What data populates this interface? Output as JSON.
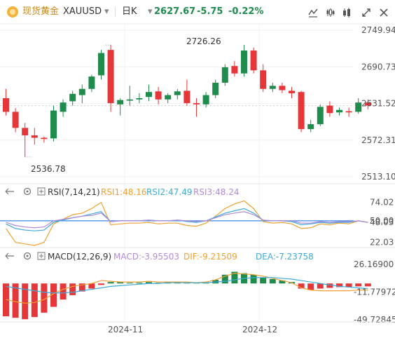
{
  "header": {
    "symbol_name": "现货黄金",
    "symbol_code": "XAUUSD",
    "interval": "日K",
    "price": "2627.67",
    "change": "-5.75",
    "change_pct": "-0.22%",
    "up_color": "#e5363a",
    "down_color": "#1f8b4c",
    "icons": [
      "drawing-tool-icon",
      "chart-type-icon",
      "indicator-icon",
      "fullscreen-icon",
      "close-icon"
    ]
  },
  "price_chart": {
    "y_ticks": [
      "2749.94",
      "2690.73",
      "2631.52",
      "2572.31",
      "2513.10"
    ],
    "y_tick_values": [
      2749.94,
      2690.73,
      2631.52,
      2572.31,
      2513.1
    ],
    "high_label": "2726.26",
    "low_label": "2536.78",
    "candles": [
      [
        2640,
        2655,
        2612,
        2618
      ],
      [
        2618,
        2624,
        2585,
        2592
      ],
      [
        2592,
        2600,
        2545,
        2580
      ],
      [
        2580,
        2592,
        2565,
        2576
      ],
      [
        2576,
        2578,
        2568,
        2574
      ],
      [
        2575,
        2628,
        2570,
        2620
      ],
      [
        2618,
        2638,
        2610,
        2633
      ],
      [
        2635,
        2652,
        2628,
        2647
      ],
      [
        2645,
        2662,
        2632,
        2655
      ],
      [
        2655,
        2678,
        2650,
        2675
      ],
      [
        2677,
        2718,
        2670,
        2713
      ],
      [
        2718,
        2726,
        2618,
        2632
      ],
      [
        2630,
        2640,
        2612,
        2637
      ],
      [
        2636,
        2660,
        2628,
        2638
      ],
      [
        2638,
        2648,
        2632,
        2640
      ],
      [
        2642,
        2662,
        2635,
        2650
      ],
      [
        2651,
        2658,
        2630,
        2638
      ],
      [
        2638,
        2648,
        2632,
        2645
      ],
      [
        2645,
        2655,
        2638,
        2651
      ],
      [
        2652,
        2670,
        2628,
        2632
      ],
      [
        2632,
        2640,
        2610,
        2630
      ],
      [
        2630,
        2650,
        2625,
        2645
      ],
      [
        2645,
        2670,
        2640,
        2665
      ],
      [
        2665,
        2695,
        2660,
        2690
      ],
      [
        2692,
        2700,
        2675,
        2680
      ],
      [
        2680,
        2726,
        2675,
        2717
      ],
      [
        2717,
        2722,
        2680,
        2685
      ],
      [
        2685,
        2695,
        2650,
        2655
      ],
      [
        2655,
        2665,
        2650,
        2660
      ],
      [
        2660,
        2665,
        2648,
        2653
      ],
      [
        2652,
        2658,
        2640,
        2648
      ],
      [
        2650,
        2652,
        2585,
        2590
      ],
      [
        2590,
        2605,
        2585,
        2598
      ],
      [
        2598,
        2630,
        2595,
        2626
      ],
      [
        2628,
        2635,
        2610,
        2616
      ],
      [
        2617,
        2625,
        2612,
        2621
      ],
      [
        2619,
        2625,
        2610,
        2617
      ],
      [
        2618,
        2640,
        2615,
        2633
      ],
      [
        2633,
        2638,
        2622,
        2628
      ]
    ]
  },
  "rsi_panel": {
    "label": "RSI(7,14,21)",
    "rsi1": "RSI1:48.16",
    "rsi2": "RSI2:47.49",
    "rsi3": "RSI3:48.24",
    "rsi1_color": "#f0a033",
    "rsi2_color": "#3fa9d8",
    "rsi3_color": "#b08ad8",
    "y_ticks": [
      "74.02",
      "50.00",
      "48.03",
      "22.03"
    ],
    "y_tick_values": [
      74.02,
      50.0,
      48.03,
      22.03
    ],
    "rsi1_values": [
      40,
      22,
      20,
      18,
      22,
      46,
      52,
      58,
      60,
      66,
      74,
      45,
      46,
      47,
      47,
      48,
      46,
      47,
      47,
      44,
      43,
      47,
      56,
      66,
      72,
      76,
      66,
      49,
      47,
      48,
      46,
      40,
      41,
      46,
      45,
      47,
      46,
      50,
      48
    ],
    "rsi2_values": [
      46,
      40,
      38,
      37,
      38,
      48,
      51,
      54,
      56,
      59,
      62,
      49,
      50,
      50,
      50,
      51,
      50,
      50,
      51,
      49,
      48,
      50,
      55,
      60,
      63,
      66,
      60,
      51,
      50,
      50,
      49,
      45,
      46,
      48,
      47,
      48,
      48,
      50,
      48
    ],
    "rsi3_values": [
      48,
      44,
      42,
      41,
      42,
      50,
      52,
      54,
      56,
      57,
      60,
      49,
      50,
      50,
      50,
      51,
      50,
      50,
      51,
      50,
      49,
      50,
      54,
      58,
      60,
      62,
      58,
      51,
      50,
      50,
      50,
      47,
      47,
      49,
      48,
      49,
      49,
      50,
      48
    ]
  },
  "macd_panel": {
    "label": "MACD(12,26,9)",
    "macd": "MACD:-3.95503",
    "dif": "DIF:-9.21509",
    "dea": "DEA:-7.23758",
    "macd_color": "#b08ad8",
    "dif_color": "#f0a033",
    "dea_color": "#3fa9d8",
    "y_ticks": [
      "26.16900",
      "-11.77972",
      "-49.72845"
    ],
    "y_tick_values": [
      26.169,
      -11.77972,
      -49.72845
    ],
    "hist": [
      -45,
      -47,
      -49,
      -46,
      -40,
      -32,
      -22,
      -16,
      -11,
      -7,
      -2,
      2,
      2,
      1,
      1,
      2,
      1,
      2,
      2,
      1,
      1,
      1,
      5,
      12,
      16,
      14,
      12,
      8,
      6,
      4,
      2,
      -7,
      -9,
      -7,
      -6,
      -5,
      -5,
      -4,
      -4
    ],
    "dif_values": [
      -22,
      -25,
      -27,
      -26,
      -22,
      -14,
      -8,
      -4,
      -2,
      0,
      4,
      3,
      2,
      2,
      2,
      3,
      2,
      2,
      2,
      2,
      1,
      2,
      5,
      10,
      14,
      13,
      12,
      10,
      7,
      4,
      1,
      -6,
      -9,
      -10,
      -10,
      -10,
      -10,
      -9,
      -9
    ],
    "dea_values": [
      -4,
      -6,
      -8,
      -10,
      -12,
      -13,
      -13,
      -12,
      -10,
      -8,
      -6,
      -4,
      -3,
      -2,
      -1,
      0,
      0,
      1,
      1,
      1,
      1,
      1,
      2,
      3,
      5,
      7,
      8,
      8,
      8,
      7,
      6,
      4,
      2,
      0,
      -2,
      -4,
      -5,
      -6,
      -7
    ]
  },
  "x_axis": {
    "labels": [
      "2024-11",
      "2024-12"
    ]
  }
}
